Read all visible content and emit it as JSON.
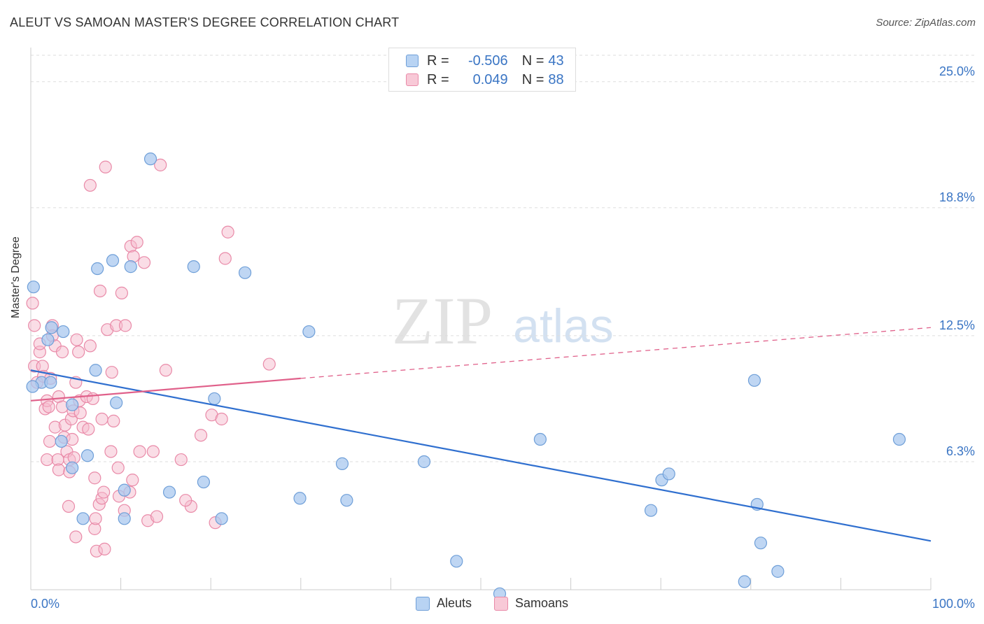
{
  "header": {
    "title": "ALEUT VS SAMOAN MASTER'S DEGREE CORRELATION CHART",
    "source": "Source: ZipAtlas.com"
  },
  "watermark": {
    "zip": "ZIP",
    "atlas": "atlas"
  },
  "legend": {
    "rows": [
      {
        "r_label": "R =",
        "r_value": "-0.506",
        "n_label": "N =",
        "n_value": "43"
      },
      {
        "r_label": "R =",
        "r_value": "0.049",
        "n_label": "N =",
        "n_value": "88"
      }
    ]
  },
  "bottom_legend": {
    "items": [
      "Aleuts",
      "Samoans"
    ]
  },
  "colors": {
    "aleut_fill": "#a9c8ef",
    "aleut_stroke": "#6f9fd8",
    "aleut_line": "#2f6fcf",
    "samoan_fill": "#f6bccd",
    "samoan_stroke": "#e98aa8",
    "samoan_line": "#e0608a",
    "tick_label": "#3a75c4",
    "grid": "#dddddd"
  },
  "chart_data": {
    "type": "scatter",
    "title": "ALEUT VS SAMOAN MASTER'S DEGREE CORRELATION CHART",
    "xlabel": "",
    "ylabel": "Master's Degree",
    "xlim": [
      0,
      100
    ],
    "ylim": [
      0,
      26.3
    ],
    "x_tick_labels": [
      "0.0%",
      "100.0%"
    ],
    "y_ticks": [
      {
        "value": 6.3,
        "label": "6.3%"
      },
      {
        "value": 12.5,
        "label": "12.5%"
      },
      {
        "value": 18.8,
        "label": "18.8%"
      },
      {
        "value": 25.0,
        "label": "25.0%"
      }
    ],
    "grid": "horizontal dashed",
    "series": [
      {
        "name": "Aleuts",
        "points": [
          [
            0.3,
            14.9
          ],
          [
            1.2,
            10.2
          ],
          [
            1.9,
            12.3
          ],
          [
            2.3,
            12.9
          ],
          [
            2.2,
            10.2
          ],
          [
            3.6,
            12.7
          ],
          [
            4.6,
            9.1
          ],
          [
            3.4,
            7.3
          ],
          [
            4.6,
            6.0
          ],
          [
            6.3,
            6.6
          ],
          [
            7.2,
            10.8
          ],
          [
            5.8,
            3.5
          ],
          [
            7.4,
            15.8
          ],
          [
            9.1,
            16.2
          ],
          [
            9.5,
            9.2
          ],
          [
            10.4,
            4.9
          ],
          [
            10.4,
            3.5
          ],
          [
            11.1,
            15.9
          ],
          [
            13.3,
            21.2
          ],
          [
            15.4,
            4.8
          ],
          [
            18.1,
            15.9
          ],
          [
            19.2,
            5.3
          ],
          [
            20.4,
            9.4
          ],
          [
            21.2,
            3.5
          ],
          [
            23.8,
            15.6
          ],
          [
            29.9,
            4.5
          ],
          [
            30.9,
            12.7
          ],
          [
            34.6,
            6.2
          ],
          [
            35.1,
            4.4
          ],
          [
            43.7,
            6.3
          ],
          [
            47.3,
            1.4
          ],
          [
            52.1,
            -0.2
          ],
          [
            56.6,
            7.4
          ],
          [
            68.9,
            3.9
          ],
          [
            70.1,
            5.4
          ],
          [
            70.9,
            5.7
          ],
          [
            79.3,
            0.4
          ],
          [
            80.4,
            10.3
          ],
          [
            80.7,
            4.2
          ],
          [
            81.1,
            2.3
          ],
          [
            83.0,
            0.9
          ],
          [
            96.5,
            7.4
          ],
          [
            0.2,
            10.0
          ]
        ]
      },
      {
        "name": "Samoans",
        "points": [
          [
            0.2,
            14.1
          ],
          [
            0.4,
            13.0
          ],
          [
            0.4,
            11.0
          ],
          [
            0.7,
            10.2
          ],
          [
            1.0,
            11.7
          ],
          [
            1.0,
            12.1
          ],
          [
            1.3,
            11.0
          ],
          [
            1.4,
            10.5
          ],
          [
            1.6,
            8.9
          ],
          [
            1.8,
            9.3
          ],
          [
            1.8,
            6.4
          ],
          [
            2.0,
            9.0
          ],
          [
            2.1,
            7.3
          ],
          [
            2.2,
            10.4
          ],
          [
            2.4,
            13.0
          ],
          [
            2.4,
            12.5
          ],
          [
            2.7,
            12.0
          ],
          [
            2.7,
            8.0
          ],
          [
            3.0,
            6.4
          ],
          [
            3.1,
            9.5
          ],
          [
            3.1,
            5.9
          ],
          [
            3.5,
            9.0
          ],
          [
            3.5,
            11.7
          ],
          [
            3.7,
            7.5
          ],
          [
            3.8,
            8.1
          ],
          [
            4.0,
            6.8
          ],
          [
            4.2,
            4.1
          ],
          [
            4.3,
            6.4
          ],
          [
            4.3,
            5.8
          ],
          [
            4.5,
            8.4
          ],
          [
            4.6,
            7.4
          ],
          [
            4.7,
            8.8
          ],
          [
            4.8,
            6.5
          ],
          [
            5.0,
            2.6
          ],
          [
            5.0,
            10.2
          ],
          [
            5.1,
            12.3
          ],
          [
            5.3,
            11.7
          ],
          [
            5.4,
            9.3
          ],
          [
            5.5,
            8.7
          ],
          [
            5.8,
            8.0
          ],
          [
            6.2,
            9.5
          ],
          [
            6.4,
            7.9
          ],
          [
            6.6,
            12.0
          ],
          [
            6.9,
            9.4
          ],
          [
            7.1,
            3.0
          ],
          [
            7.1,
            5.5
          ],
          [
            7.2,
            3.5
          ],
          [
            7.3,
            1.9
          ],
          [
            7.6,
            4.2
          ],
          [
            7.7,
            14.7
          ],
          [
            7.9,
            8.4
          ],
          [
            7.9,
            4.5
          ],
          [
            8.1,
            4.8
          ],
          [
            8.2,
            2.0
          ],
          [
            8.3,
            20.8
          ],
          [
            8.5,
            12.8
          ],
          [
            8.9,
            6.8
          ],
          [
            9.0,
            10.7
          ],
          [
            9.2,
            8.3
          ],
          [
            9.5,
            13.0
          ],
          [
            9.8,
            4.6
          ],
          [
            10.1,
            14.6
          ],
          [
            10.4,
            3.9
          ],
          [
            10.5,
            13.0
          ],
          [
            11.0,
            4.8
          ],
          [
            11.1,
            16.9
          ],
          [
            11.3,
            5.4
          ],
          [
            11.4,
            16.4
          ],
          [
            11.8,
            17.1
          ],
          [
            12.1,
            6.8
          ],
          [
            12.6,
            16.1
          ],
          [
            13.0,
            3.4
          ],
          [
            13.6,
            6.8
          ],
          [
            14.0,
            3.6
          ],
          [
            14.4,
            20.9
          ],
          [
            15.0,
            10.8
          ],
          [
            16.7,
            6.4
          ],
          [
            17.8,
            4.1
          ],
          [
            18.9,
            7.6
          ],
          [
            20.1,
            8.6
          ],
          [
            20.5,
            3.3
          ],
          [
            21.2,
            8.4
          ],
          [
            21.6,
            16.3
          ],
          [
            21.9,
            17.6
          ],
          [
            26.5,
            11.1
          ],
          [
            17.2,
            4.4
          ],
          [
            6.6,
            19.9
          ],
          [
            9.7,
            6.0
          ]
        ]
      }
    ],
    "trend_lines": [
      {
        "series": "Aleuts",
        "x": [
          0,
          100
        ],
        "y": [
          10.8,
          2.4
        ],
        "style": "solid"
      },
      {
        "series": "Samoans",
        "x": [
          0,
          30
        ],
        "y": [
          9.3,
          10.4
        ],
        "style": "solid"
      },
      {
        "series": "Samoans",
        "x": [
          30,
          100
        ],
        "y": [
          10.4,
          12.9
        ],
        "style": "dashed"
      }
    ]
  }
}
